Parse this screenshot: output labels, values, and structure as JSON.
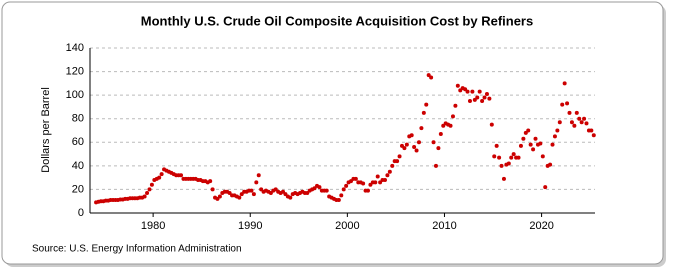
{
  "chart_data": {
    "type": "scatter",
    "title": "Monthly U.S. Crude Oil Composite Acquisition Cost by Refiners",
    "y_label": "Dollars per Barrel",
    "source": "Source: U.S. Energy Information Administration",
    "color": "#cc0000",
    "grid": true,
    "xlim": [
      1973.5,
      2025.5
    ],
    "xticks": [
      1980,
      1990,
      2000,
      2010,
      2020
    ],
    "ylim": [
      0,
      140
    ],
    "yticks": [
      0,
      20,
      40,
      60,
      80,
      100,
      120,
      140
    ],
    "x": [
      1974.125,
      1974.375,
      1974.625,
      1974.875,
      1975.125,
      1975.375,
      1975.625,
      1975.875,
      1976.125,
      1976.375,
      1976.625,
      1976.875,
      1977.125,
      1977.375,
      1977.625,
      1977.875,
      1978.125,
      1978.375,
      1978.625,
      1978.875,
      1979.125,
      1979.375,
      1979.625,
      1979.875,
      1980.125,
      1980.375,
      1980.625,
      1980.875,
      1981.125,
      1981.375,
      1981.625,
      1981.875,
      1982.125,
      1982.375,
      1982.625,
      1982.875,
      1983.125,
      1983.375,
      1983.625,
      1983.875,
      1984.125,
      1984.375,
      1984.625,
      1984.875,
      1985.125,
      1985.375,
      1985.625,
      1985.875,
      1986.125,
      1986.375,
      1986.625,
      1986.875,
      1987.125,
      1987.375,
      1987.625,
      1987.875,
      1988.125,
      1988.375,
      1988.625,
      1988.875,
      1989.125,
      1989.375,
      1989.625,
      1989.875,
      1990.125,
      1990.375,
      1990.625,
      1990.875,
      1991.125,
      1991.375,
      1991.625,
      1991.875,
      1992.125,
      1992.375,
      1992.625,
      1992.875,
      1993.125,
      1993.375,
      1993.625,
      1993.875,
      1994.125,
      1994.375,
      1994.625,
      1994.875,
      1995.125,
      1995.375,
      1995.625,
      1995.875,
      1996.125,
      1996.375,
      1996.625,
      1996.875,
      1997.125,
      1997.375,
      1997.625,
      1997.875,
      1998.125,
      1998.375,
      1998.625,
      1998.875,
      1999.125,
      1999.375,
      1999.625,
      1999.875,
      2000.125,
      2000.375,
      2000.625,
      2000.875,
      2001.125,
      2001.375,
      2001.625,
      2001.875,
      2002.125,
      2002.375,
      2002.625,
      2002.875,
      2003.125,
      2003.375,
      2003.625,
      2003.875,
      2004.125,
      2004.375,
      2004.625,
      2004.875,
      2005.125,
      2005.375,
      2005.625,
      2005.875,
      2006.125,
      2006.375,
      2006.625,
      2006.875,
      2007.125,
      2007.375,
      2007.625,
      2007.875,
      2008.125,
      2008.375,
      2008.625,
      2008.875,
      2009.125,
      2009.375,
      2009.625,
      2009.875,
      2010.125,
      2010.375,
      2010.625,
      2010.875,
      2011.125,
      2011.375,
      2011.625,
      2011.875,
      2012.125,
      2012.375,
      2012.625,
      2012.875,
      2013.125,
      2013.375,
      2013.625,
      2013.875,
      2014.125,
      2014.375,
      2014.625,
      2014.875,
      2015.125,
      2015.375,
      2015.625,
      2015.875,
      2016.125,
      2016.375,
      2016.625,
      2016.875,
      2017.125,
      2017.375,
      2017.625,
      2017.875,
      2018.125,
      2018.375,
      2018.625,
      2018.875,
      2019.125,
      2019.375,
      2019.625,
      2019.875,
      2020.125,
      2020.375,
      2020.625,
      2020.875,
      2021.125,
      2021.375,
      2021.625,
      2021.875,
      2022.125,
      2022.375,
      2022.625,
      2022.875,
      2023.125,
      2023.375,
      2023.625,
      2023.875,
      2024.125,
      2024.375,
      2024.625,
      2024.875,
      2025.125,
      2025.375
    ],
    "values": [
      9,
      9.5,
      10,
      10,
      10.5,
      10.5,
      11,
      11,
      11,
      11,
      11.5,
      11.5,
      12,
      12,
      12.5,
      12.5,
      12.5,
      12.5,
      13,
      13,
      14,
      17,
      20,
      24,
      28,
      29,
      30,
      33,
      37,
      36,
      35,
      34,
      33,
      32,
      32,
      32,
      29,
      29,
      29,
      29,
      29,
      29,
      28,
      28,
      27,
      27,
      26,
      27,
      20,
      13,
      12,
      14,
      17,
      18,
      18,
      17,
      15,
      15,
      14,
      13,
      16,
      18,
      18,
      19,
      19,
      16,
      26,
      32,
      20,
      18,
      19,
      18,
      17,
      19,
      20,
      18,
      17,
      18,
      16,
      14,
      13,
      16,
      17,
      16,
      17,
      18,
      17,
      17,
      19,
      20,
      21,
      23,
      22,
      19,
      19,
      19,
      14,
      13,
      12,
      11,
      11,
      15,
      20,
      23,
      26,
      27,
      29,
      29,
      26,
      26,
      25,
      19,
      19,
      24,
      26,
      26,
      31,
      26,
      28,
      28,
      32,
      35,
      40,
      44,
      44,
      48,
      57,
      55,
      58,
      65,
      66,
      56,
      53,
      60,
      72,
      85,
      92,
      117,
      115,
      60,
      40,
      55,
      67,
      74,
      76,
      75,
      74,
      82,
      91,
      108,
      104,
      106,
      105,
      103,
      95,
      103,
      96,
      98,
      103,
      95,
      98,
      101,
      97,
      75,
      48,
      57,
      47,
      40,
      29,
      41,
      42,
      47,
      50,
      47,
      47,
      57,
      63,
      68,
      70,
      58,
      54,
      63,
      58,
      59,
      48,
      22,
      40,
      41,
      58,
      65,
      70,
      77,
      92,
      110,
      93,
      85,
      77,
      74,
      85,
      80,
      77,
      80,
      76,
      70,
      70,
      66
    ]
  }
}
